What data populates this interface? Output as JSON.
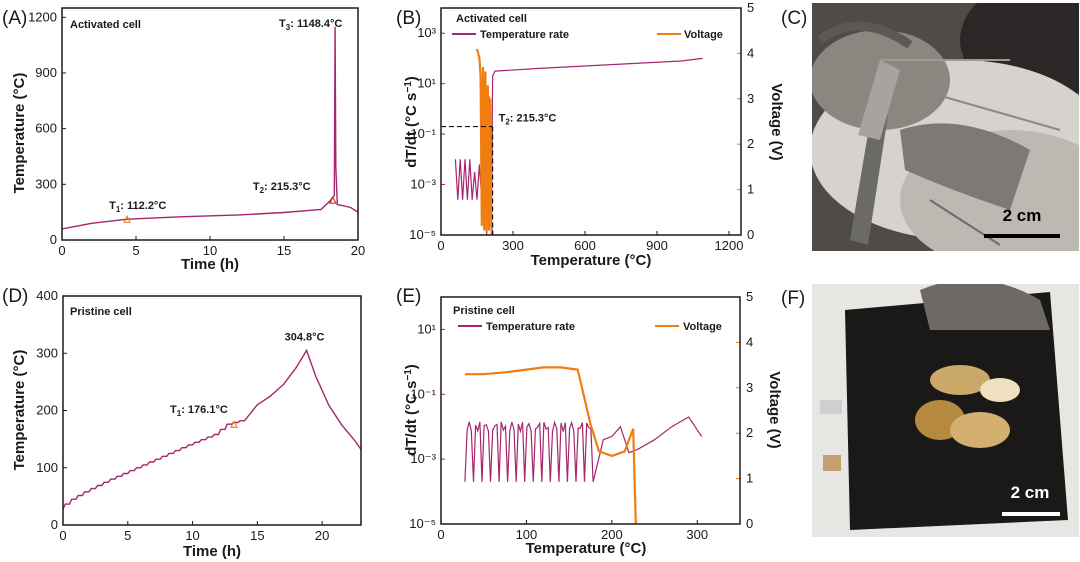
{
  "colors": {
    "temp_line": "#a6266e",
    "voltage_line": "#f07d10",
    "t3_blue": "#2233bb",
    "t2_red": "#cc1a1a",
    "t1_orange": "#e07410",
    "axis": "#1a1a1a"
  },
  "photos": [
    {
      "letter": "(C)",
      "scale_label": "2 cm"
    },
    {
      "letter": "(F)",
      "scale_label": "2 cm"
    }
  ],
  "chart_data": [
    {
      "letter": "(A)",
      "type": "line",
      "title": "Activated cell",
      "xlabel": "Time (h)",
      "ylabel": "Temperature (°C)",
      "xlim": [
        0,
        20
      ],
      "ylim": [
        0,
        1250
      ],
      "xticks": [
        0,
        5,
        10,
        15,
        20
      ],
      "yticks": [
        0,
        300,
        600,
        900,
        1200
      ],
      "series": [
        {
          "name": "Temperature",
          "x": [
            0,
            2,
            4.4,
            8,
            12,
            15,
            17.5,
            18.1,
            18.4,
            18.45,
            18.5,
            18.6,
            19.0,
            19.5,
            20
          ],
          "y": [
            60,
            90,
            112,
            125,
            135,
            148,
            165,
            210,
            240,
            1148,
            400,
            190,
            185,
            175,
            150
          ]
        }
      ],
      "annotations": [
        {
          "prefix": "T",
          "sub": "1",
          "rest": ": 112.2°C",
          "x": 4.4,
          "y": 112,
          "color": "t1_orange"
        },
        {
          "prefix": "T",
          "sub": "2",
          "rest": ":  215.3°C",
          "x": 18.3,
          "y": 215,
          "color": "t2_red"
        },
        {
          "prefix": "T",
          "sub": "3",
          "rest": ": 1148.4°C",
          "x": 18.45,
          "y": 1148,
          "color": "t3_blue"
        }
      ]
    },
    {
      "letter": "(B)",
      "type": "line",
      "title": "Activated cell",
      "xlabel": "Temperature (°C)",
      "ylabel": "dT/dt (°C s⁻¹)",
      "y2label": "Voltage (V)",
      "xlim": [
        0,
        1250
      ],
      "ylim_log": [
        -5,
        4
      ],
      "y2lim": [
        0,
        5
      ],
      "xticks": [
        0,
        300,
        600,
        900,
        1200
      ],
      "yticks": [
        "10³",
        "10¹",
        "10⁻¹",
        "10⁻³",
        "10⁻⁵"
      ],
      "yticks_exp": [
        3,
        1,
        -1,
        -3,
        -5
      ],
      "y2ticks": [
        0,
        1,
        2,
        3,
        4,
        5
      ],
      "legend": [
        "Temperature rate",
        "Voltage"
      ],
      "series": [
        {
          "name": "Temperature rate",
          "axis": "y",
          "x": [
            60,
            70,
            80,
            90,
            100,
            110,
            120,
            130,
            140,
            150,
            160,
            170,
            180,
            190,
            200,
            210,
            215,
            225,
            400,
            600,
            800,
            1000,
            1090
          ],
          "y_exp": [
            -2,
            -3.6,
            -2,
            -3.6,
            -2,
            -3.6,
            -2,
            -3.6,
            -2.5,
            -3.6,
            -2.2,
            -3.6,
            -3.0,
            -5,
            0.5,
            -5,
            1.3,
            1.5,
            1.6,
            1.7,
            1.8,
            1.9,
            2.0
          ]
        },
        {
          "name": "Voltage",
          "axis": "y2",
          "x": [
            150,
            155,
            160,
            165,
            170,
            175,
            180,
            185,
            190,
            195,
            200,
            205,
            210,
            215
          ],
          "y": [
            4.1,
            4.0,
            3.9,
            3.5,
            0.2,
            3.7,
            0.1,
            3.6,
            0.05,
            3.3,
            0.1,
            3.0,
            0.2,
            0
          ]
        }
      ],
      "annotations": [
        {
          "prefix": "T",
          "sub": "2",
          "rest": ":  215.3°C",
          "x": 215,
          "y_exp": -0.7,
          "color": "t2_red"
        }
      ]
    },
    {
      "letter": "(D)",
      "type": "line",
      "title": "Pristine cell",
      "xlabel": "Time (h)",
      "ylabel": "Temperature (°C)",
      "xlim": [
        0,
        23
      ],
      "ylim": [
        0,
        400
      ],
      "xticks": [
        0,
        5,
        10,
        15,
        20
      ],
      "yticks": [
        0,
        100,
        200,
        300,
        400
      ],
      "series": [
        {
          "name": "Temperature",
          "x": [
            0,
            1,
            2,
            4,
            6,
            8,
            10,
            12,
            13,
            14,
            15,
            16,
            17,
            18,
            18.8,
            19.5,
            20.5,
            21.5,
            22.5,
            23
          ],
          "y": [
            28,
            45,
            58,
            80,
            100,
            120,
            140,
            158,
            176,
            182,
            210,
            225,
            245,
            275,
            305,
            260,
            210,
            175,
            148,
            132
          ]
        }
      ],
      "annotations": [
        {
          "prefix": "T",
          "sub": "1",
          "rest": ":  176.1°C",
          "x": 13.2,
          "y": 176,
          "color": "t1_orange"
        },
        {
          "prefix": "",
          "sub": "",
          "rest": "304.8°C",
          "x": 18.8,
          "y": 305,
          "color": "temp_line"
        }
      ]
    },
    {
      "letter": "(E)",
      "type": "line",
      "title": "Pristine cell",
      "xlabel": "Temperature (°C)",
      "ylabel": "dT/dt (°C s⁻¹)",
      "y2label": "Voltage (V)",
      "xlim": [
        0,
        350
      ],
      "ylim_log": [
        -5,
        2
      ],
      "y2lim": [
        0,
        5
      ],
      "xticks": [
        0,
        100,
        200,
        300
      ],
      "yticks": [
        "10¹",
        "10⁻¹",
        "10⁻³",
        "10⁻⁵"
      ],
      "yticks_exp": [
        1,
        -1,
        -3,
        -5
      ],
      "y2ticks": [
        0,
        1,
        2,
        3,
        4,
        5
      ],
      "legend": [
        "Temperature rate",
        "Voltage"
      ],
      "series": [
        {
          "name": "Temperature rate",
          "axis": "y",
          "x": [
            28,
            180,
            190,
            200,
            210,
            220,
            230,
            250,
            270,
            290,
            305
          ],
          "y_exp": [
            -2.0,
            -2.0,
            -2.4,
            -2.3,
            -2.0,
            -2.8,
            -2.7,
            -2.4,
            -2.0,
            -1.7,
            -2.3
          ]
        },
        {
          "name": "Voltage",
          "axis": "y2",
          "x": [
            28,
            50,
            80,
            100,
            120,
            140,
            160,
            165,
            175,
            185,
            200,
            215,
            225,
            228
          ],
          "y": [
            3.3,
            3.3,
            3.35,
            3.4,
            3.45,
            3.45,
            3.4,
            3.0,
            2.2,
            1.6,
            1.5,
            1.6,
            2.1,
            0
          ]
        }
      ]
    }
  ]
}
